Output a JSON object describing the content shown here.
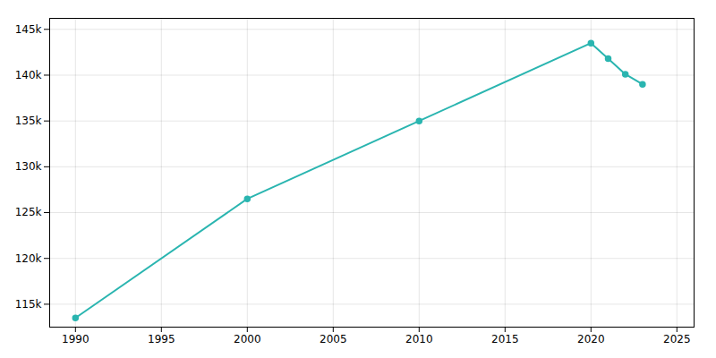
{
  "chart_data": {
    "type": "line",
    "x": [
      1990,
      2000,
      2010,
      2020,
      2021,
      2022,
      2023
    ],
    "values": [
      113500,
      126500,
      135000,
      143500,
      141800,
      140100,
      139000
    ],
    "color": "#2ab5b0",
    "marker": "circle",
    "xlim": [
      1988.5,
      2026
    ],
    "ylim": [
      112500,
      146200
    ],
    "xticks": [
      1990,
      1995,
      2000,
      2005,
      2010,
      2015,
      2020,
      2025
    ],
    "yticks": [
      {
        "value": 115000,
        "label": "115k"
      },
      {
        "value": 120000,
        "label": "120k"
      },
      {
        "value": 125000,
        "label": "125k"
      },
      {
        "value": 130000,
        "label": "130k"
      },
      {
        "value": 135000,
        "label": "135k"
      },
      {
        "value": 140000,
        "label": "140k"
      },
      {
        "value": 145000,
        "label": "145k"
      }
    ],
    "grid": true
  }
}
